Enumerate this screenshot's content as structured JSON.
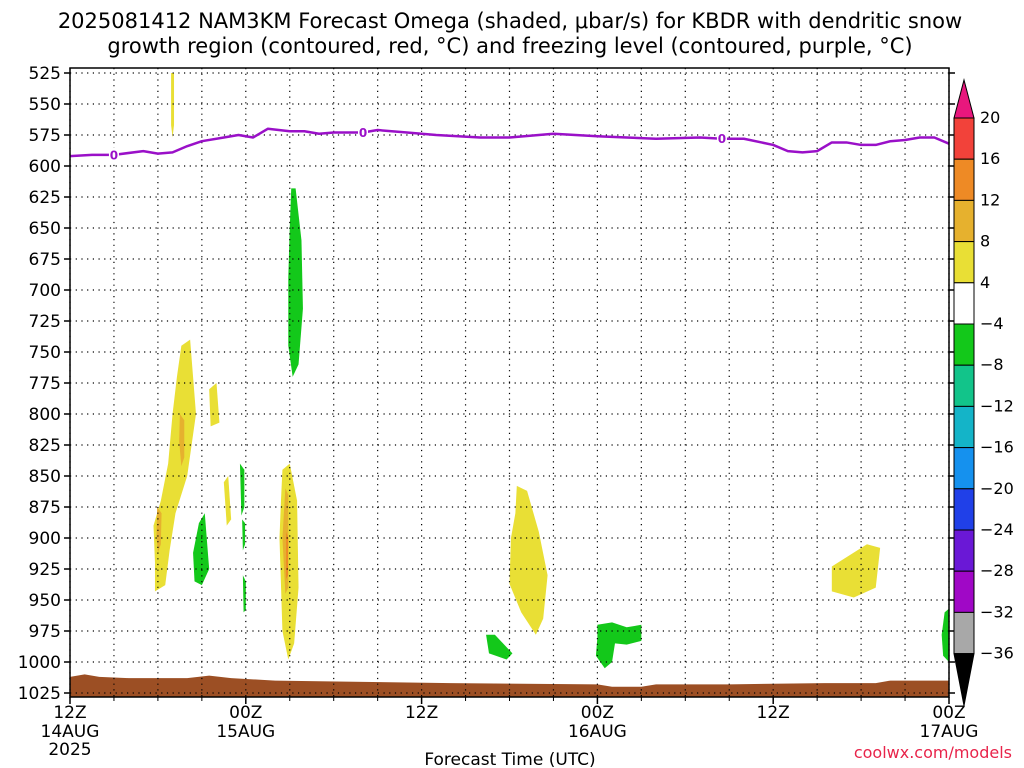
{
  "title_line1": "2025081412 NAM3KM Forecast Omega (shaded, μbar/s) for KBDR with dendritic snow",
  "title_line2": "growth region (contoured, red, °C) and freezing level (contoured, purple, °C)",
  "xlabel": "Forecast Time (UTC)",
  "credit": "coolwx.com/models",
  "chart_data": {
    "type": "heatmap",
    "y_axis": {
      "label": "",
      "scale": "pressure (reversed)",
      "range": [
        1025,
        525
      ],
      "ticks": [
        525,
        550,
        575,
        600,
        625,
        650,
        675,
        700,
        725,
        750,
        775,
        800,
        825,
        850,
        875,
        900,
        925,
        950,
        975,
        1000,
        1025
      ]
    },
    "x_axis": {
      "range_hours": [
        0,
        60
      ],
      "ticks": [
        {
          "hour": 0,
          "label": "12Z",
          "date": "14AUG",
          "year": "2025"
        },
        {
          "hour": 12,
          "label": "00Z",
          "date": "15AUG",
          "year": ""
        },
        {
          "hour": 24,
          "label": "12Z",
          "date": "",
          "year": ""
        },
        {
          "hour": 36,
          "label": "00Z",
          "date": "16AUG",
          "year": ""
        },
        {
          "hour": 48,
          "label": "12Z",
          "date": "",
          "year": ""
        },
        {
          "hour": 60,
          "label": "00Z",
          "date": "17AUG",
          "year": ""
        }
      ]
    },
    "grid": "dotted",
    "colorbar": {
      "levels": [
        "20",
        "16",
        "12",
        "8",
        "4",
        "−4",
        "−8",
        "−12",
        "−16",
        "−20",
        "−24",
        "−28",
        "−32",
        "−36"
      ],
      "bins": [
        {
          "range": "> 20",
          "color": "#e8177d"
        },
        {
          "range": "16 to 20",
          "color": "#f2423a"
        },
        {
          "range": "12 to 16",
          "color": "#ee8a25"
        },
        {
          "range": "8 to 12",
          "color": "#e6b12e"
        },
        {
          "range": "4 to 8",
          "color": "#e9df35"
        },
        {
          "range": "-4 to 4",
          "color": "#ffffff"
        },
        {
          "range": "-8 to -4",
          "color": "#13c81a"
        },
        {
          "range": "-12 to -8",
          "color": "#12c48a"
        },
        {
          "range": "-16 to -12",
          "color": "#14b4c8"
        },
        {
          "range": "-20 to -16",
          "color": "#1591ee"
        },
        {
          "range": "-24 to -20",
          "color": "#2040e8"
        },
        {
          "range": "-28 to -24",
          "color": "#6a18d6"
        },
        {
          "range": "-32 to -28",
          "color": "#a008c6"
        },
        {
          "range": "-36 to -32",
          "color": "#a8a8a8"
        },
        {
          "range": "< -36",
          "color": "#000000"
        }
      ]
    },
    "freezing_level": {
      "value_label": "0",
      "color": "#9a10c8",
      "points": [
        [
          0,
          592
        ],
        [
          1.5,
          591
        ],
        [
          3,
          591
        ],
        [
          5,
          588
        ],
        [
          6,
          590
        ],
        [
          7,
          589
        ],
        [
          8,
          584
        ],
        [
          9,
          580
        ],
        [
          10.5,
          577
        ],
        [
          11.5,
          575
        ],
        [
          12.5,
          577
        ],
        [
          13.5,
          570
        ],
        [
          15,
          572
        ],
        [
          16,
          572
        ],
        [
          17,
          574
        ],
        [
          18,
          573
        ],
        [
          20,
          573
        ],
        [
          21,
          571
        ],
        [
          23,
          573
        ],
        [
          25,
          575
        ],
        [
          28,
          577
        ],
        [
          30,
          577
        ],
        [
          32,
          575
        ],
        [
          33,
          574
        ],
        [
          36,
          576
        ],
        [
          38,
          577
        ],
        [
          40,
          578
        ],
        [
          43,
          577
        ],
        [
          44.5,
          578
        ],
        [
          46,
          578
        ],
        [
          48,
          583
        ],
        [
          49,
          588
        ],
        [
          50,
          589
        ],
        [
          51,
          588
        ],
        [
          52,
          581
        ],
        [
          53,
          581
        ],
        [
          54,
          583
        ],
        [
          55,
          583
        ],
        [
          56,
          580
        ],
        [
          57,
          579
        ],
        [
          58,
          577
        ],
        [
          59,
          577
        ],
        [
          60,
          582
        ]
      ],
      "label_hours": [
        3,
        20,
        44.5
      ]
    },
    "terrain": {
      "color": "#9c4f24",
      "top_points": [
        [
          0,
          1012
        ],
        [
          1,
          1010
        ],
        [
          2,
          1012
        ],
        [
          4,
          1013
        ],
        [
          8,
          1013
        ],
        [
          9.5,
          1011
        ],
        [
          11,
          1013
        ],
        [
          14,
          1015
        ],
        [
          20,
          1016
        ],
        [
          26,
          1017
        ],
        [
          36,
          1018
        ],
        [
          37,
          1020
        ],
        [
          39,
          1020
        ],
        [
          40,
          1018
        ],
        [
          45,
          1018
        ],
        [
          51.5,
          1017
        ],
        [
          55,
          1017
        ],
        [
          56,
          1015
        ],
        [
          60,
          1015
        ]
      ]
    },
    "omega_regions": [
      {
        "bin": "4 to 8",
        "polygon": [
          [
            6.9,
            525
          ],
          [
            7.1,
            525
          ],
          [
            7.1,
            567
          ],
          [
            7.0,
            577
          ],
          [
            6.9,
            567
          ]
        ]
      },
      {
        "bin": "4 to 8",
        "polygon": [
          [
            7.6,
            745
          ],
          [
            8.2,
            740
          ],
          [
            8.6,
            800
          ],
          [
            8.0,
            850
          ],
          [
            7.2,
            880
          ],
          [
            6.8,
            910
          ],
          [
            6.5,
            938
          ],
          [
            5.8,
            943
          ],
          [
            5.8,
            920
          ],
          [
            5.7,
            890
          ],
          [
            6.2,
            870
          ],
          [
            6.7,
            840
          ],
          [
            7.0,
            800
          ],
          [
            7.3,
            770
          ]
        ]
      },
      {
        "bin": "8 to 12",
        "polygon": [
          [
            5.95,
            875
          ],
          [
            6.25,
            880
          ],
          [
            6.2,
            905
          ],
          [
            6.0,
            912
          ],
          [
            5.9,
            898
          ]
        ]
      },
      {
        "bin": "8 to 12",
        "polygon": [
          [
            7.5,
            800
          ],
          [
            7.8,
            805
          ],
          [
            7.8,
            835
          ],
          [
            7.6,
            842
          ],
          [
            7.45,
            822
          ]
        ]
      },
      {
        "bin": "4 to 8",
        "polygon": [
          [
            9.5,
            780
          ],
          [
            10.0,
            775
          ],
          [
            10.2,
            807
          ],
          [
            9.6,
            810
          ]
        ]
      },
      {
        "bin": "4 to 8",
        "polygon": [
          [
            10.5,
            855
          ],
          [
            10.8,
            850
          ],
          [
            11,
            885
          ],
          [
            10.7,
            890
          ]
        ]
      },
      {
        "bin": "-8 to -4",
        "polygon": [
          [
            8.8,
            888
          ],
          [
            9.2,
            880
          ],
          [
            9.5,
            925
          ],
          [
            9.0,
            938
          ],
          [
            8.5,
            935
          ],
          [
            8.4,
            912
          ]
        ]
      },
      {
        "bin": "-8 to -4",
        "polygon": [
          [
            11.6,
            840
          ],
          [
            11.9,
            845
          ],
          [
            11.9,
            875
          ],
          [
            11.7,
            882
          ]
        ]
      },
      {
        "bin": "-8 to -4",
        "polygon": [
          [
            11.75,
            885
          ],
          [
            11.95,
            888
          ],
          [
            11.95,
            905
          ],
          [
            11.8,
            910
          ]
        ]
      },
      {
        "bin": "-8 to -4",
        "polygon": [
          [
            11.8,
            930
          ],
          [
            12.0,
            935
          ],
          [
            12.0,
            958
          ],
          [
            11.85,
            960
          ]
        ]
      },
      {
        "bin": "4 to 8",
        "polygon": [
          [
            14.5,
            845
          ],
          [
            15.0,
            840
          ],
          [
            15.5,
            870
          ],
          [
            15.6,
            940
          ],
          [
            15.3,
            985
          ],
          [
            14.9,
            998
          ],
          [
            14.5,
            975
          ],
          [
            14.3,
            900
          ],
          [
            14.4,
            870
          ]
        ]
      },
      {
        "bin": "8 to 12",
        "polygon": [
          [
            14.7,
            860
          ],
          [
            14.9,
            865
          ],
          [
            14.9,
            940
          ],
          [
            14.7,
            945
          ],
          [
            14.5,
            900
          ]
        ]
      },
      {
        "bin": "12 to 16",
        "polygon": [
          [
            14.75,
            895
          ],
          [
            14.9,
            900
          ],
          [
            14.88,
            930
          ],
          [
            14.75,
            933
          ]
        ]
      },
      {
        "bin": "-8 to -4",
        "polygon": [
          [
            15.1,
            618
          ],
          [
            15.4,
            618
          ],
          [
            15.8,
            660
          ],
          [
            15.9,
            715
          ],
          [
            15.6,
            760
          ],
          [
            15.2,
            770
          ],
          [
            14.9,
            745
          ],
          [
            14.9,
            690
          ],
          [
            15.0,
            650
          ]
        ]
      },
      {
        "bin": "4 to 8",
        "polygon": [
          [
            30.5,
            858
          ],
          [
            31.2,
            862
          ],
          [
            32.0,
            895
          ],
          [
            32.6,
            930
          ],
          [
            32.3,
            965
          ],
          [
            31.8,
            978
          ],
          [
            30.8,
            960
          ],
          [
            30.0,
            937
          ],
          [
            30.1,
            900
          ],
          [
            30.4,
            880
          ]
        ]
      },
      {
        "bin": "-8 to -4",
        "polygon": [
          [
            28.4,
            978
          ],
          [
            29.0,
            978
          ],
          [
            30.2,
            993
          ],
          [
            29.8,
            998
          ],
          [
            28.6,
            993
          ]
        ]
      },
      {
        "bin": "-8 to -4",
        "polygon": [
          [
            36.0,
            970
          ],
          [
            37.0,
            968
          ],
          [
            38.0,
            972
          ],
          [
            39.0,
            970
          ],
          [
            39.0,
            983
          ],
          [
            38.0,
            986
          ],
          [
            37.2,
            985
          ],
          [
            37.0,
            1000
          ],
          [
            36.5,
            1005
          ],
          [
            35.9,
            995
          ],
          [
            36.0,
            980
          ]
        ]
      },
      {
        "bin": "4 to 8",
        "polygon": [
          [
            52.0,
            923
          ],
          [
            54.4,
            905
          ],
          [
            55.3,
            908
          ],
          [
            55.0,
            940
          ],
          [
            53.5,
            948
          ],
          [
            52.0,
            943
          ]
        ]
      },
      {
        "bin": "-8 to -4",
        "polygon": [
          [
            59.7,
            960
          ],
          [
            60.0,
            957
          ],
          [
            60.0,
            1000
          ],
          [
            59.6,
            995
          ],
          [
            59.5,
            978
          ]
        ]
      }
    ]
  }
}
